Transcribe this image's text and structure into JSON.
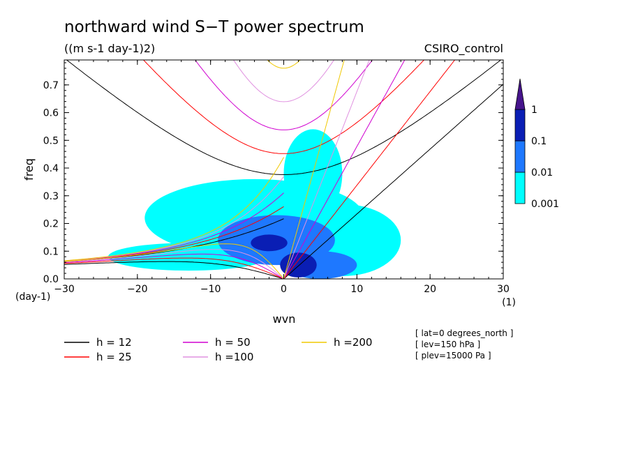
{
  "chart_data": {
    "type": "heatmap",
    "title": "northward wind S−T power spectrum",
    "units": "((m s-1 day-1)2)",
    "model": "CSIRO_control",
    "xlabel": "wvn",
    "ylabel": "freq",
    "xunit": "(1)",
    "yunit": "(day-1)",
    "xlim": [
      -30,
      30
    ],
    "ylim": [
      0,
      0.79
    ],
    "xticks": [
      -30,
      -20,
      -10,
      0,
      10,
      20,
      30
    ],
    "xtick_labels": [
      "−30",
      "−20",
      "−10",
      "0",
      "10",
      "20",
      "30"
    ],
    "yticks": [
      0,
      0.1,
      0.2,
      0.3,
      0.4,
      0.5,
      0.6,
      0.7
    ],
    "ytick_labels": [
      "0.0",
      "0.1",
      "0.2",
      "0.3",
      "0.4",
      "0.5",
      "0.6",
      "0.7"
    ],
    "colorbar": {
      "levels": [
        "0.001",
        "0.01",
        "0.1",
        "1"
      ],
      "colors": [
        "#00ffff",
        "#1e78ff",
        "#0a1eb4",
        "#46148c"
      ]
    },
    "power_regions": [
      {
        "level": 0,
        "shape": "ellipse",
        "cx": -4,
        "cy": 0.22,
        "rx": 15,
        "ry": 0.14
      },
      {
        "level": 0,
        "shape": "ellipse",
        "cx": 4,
        "cy": 0.38,
        "rx": 4,
        "ry": 0.16
      },
      {
        "level": 0,
        "shape": "ellipse",
        "cx": 8,
        "cy": 0.14,
        "rx": 8,
        "ry": 0.13
      },
      {
        "level": 0,
        "shape": "ellipse",
        "cx": -13,
        "cy": 0.08,
        "rx": 11,
        "ry": 0.05
      },
      {
        "level": 1,
        "shape": "ellipse",
        "cx": -1,
        "cy": 0.14,
        "rx": 8,
        "ry": 0.09
      },
      {
        "level": 1,
        "shape": "ellipse",
        "cx": 5,
        "cy": 0.05,
        "rx": 5,
        "ry": 0.05
      },
      {
        "level": 2,
        "shape": "ellipse",
        "cx": 2,
        "cy": 0.05,
        "rx": 2.5,
        "ry": 0.045
      },
      {
        "level": 2,
        "shape": "ellipse",
        "cx": -2,
        "cy": 0.13,
        "rx": 2.5,
        "ry": 0.03
      }
    ],
    "series": [
      {
        "name": "h = 12",
        "h": 12,
        "color": "#000000"
      },
      {
        "name": "h = 25",
        "h": 25,
        "color": "#ff0000"
      },
      {
        "name": "h = 50",
        "h": 50,
        "color": "#d000d0"
      },
      {
        "name": "h =100",
        "h": 100,
        "color": "#e090e0"
      },
      {
        "name": "h =200",
        "h": 200,
        "color": "#f0c800"
      }
    ],
    "info": [
      "[ lat=0 degrees_north ]",
      "[ lev=150 hPa ]",
      "[ plev=15000 Pa ]"
    ]
  }
}
